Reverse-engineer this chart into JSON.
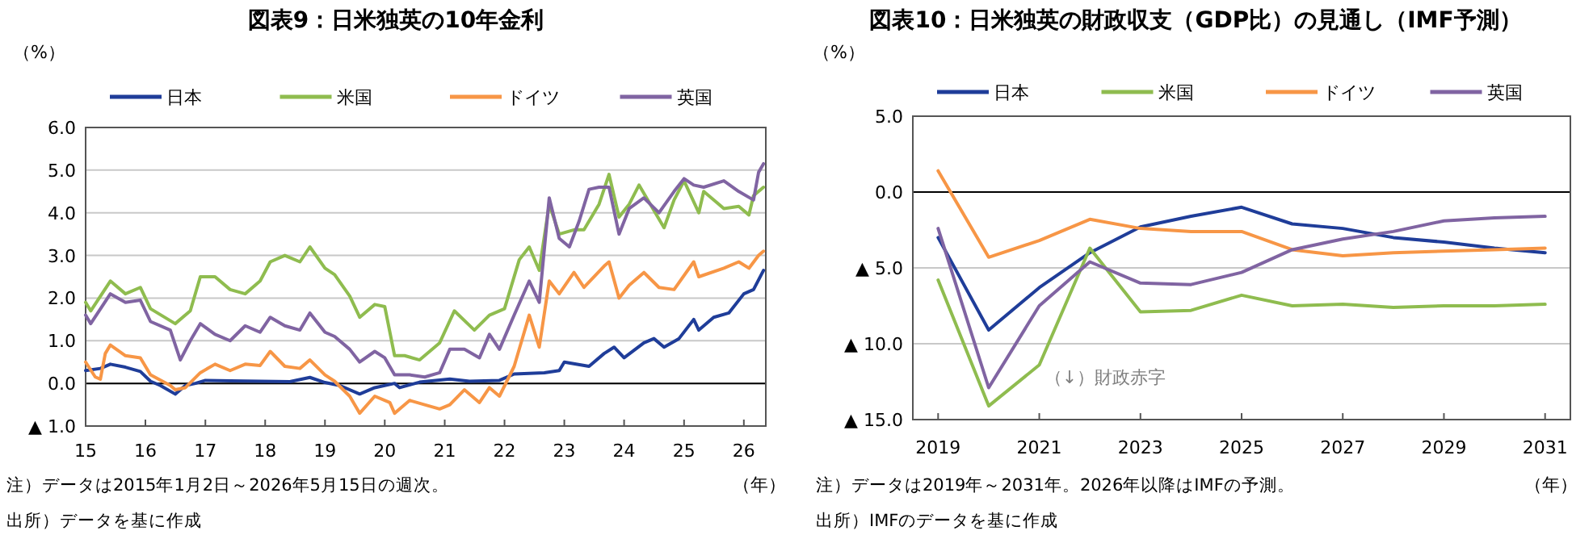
{
  "chart_data": [
    {
      "type": "line",
      "title": "図表9：日米独英の10年金利",
      "ylabel": "（%）",
      "xlabel": "（年）",
      "legend": "top",
      "grid": "y",
      "xlim": [
        "2015-01-01",
        "2026-05-15"
      ],
      "xticks": [
        {
          "value": "2015-01-01",
          "label": "15"
        },
        {
          "value": "2016-01-01",
          "label": "16"
        },
        {
          "value": "2017-01-01",
          "label": "17"
        },
        {
          "value": "2018-01-01",
          "label": "18"
        },
        {
          "value": "2019-01-01",
          "label": "19"
        },
        {
          "value": "2020-01-01",
          "label": "20"
        },
        {
          "value": "2021-01-01",
          "label": "21"
        },
        {
          "value": "2022-01-01",
          "label": "22"
        },
        {
          "value": "2023-01-01",
          "label": "23"
        },
        {
          "value": "2024-01-01",
          "label": "24"
        },
        {
          "value": "2025-01-01",
          "label": "25"
        },
        {
          "value": "2026-01-01",
          "label": "26"
        }
      ],
      "ylim": [
        -1,
        6
      ],
      "yticks": [
        {
          "value": -1,
          "label": "▲ 1.0"
        },
        {
          "value": 0,
          "label": "0.0"
        },
        {
          "value": 1,
          "label": "1.0"
        },
        {
          "value": 2,
          "label": "2.0"
        },
        {
          "value": 3,
          "label": "3.0"
        },
        {
          "value": 4,
          "label": "4.0"
        },
        {
          "value": 5,
          "label": "5.0"
        },
        {
          "value": 6,
          "label": "6.0"
        }
      ],
      "ref_lines": [
        {
          "axis": "y",
          "value": 0,
          "color": "#000000"
        }
      ],
      "annotations": [
        "注）データは2015年1月2日～2026年5月15日の週次。",
        "出所）データを基に作成"
      ],
      "series": [
        {
          "name": "日本",
          "color": "#1f3d99",
          "x": [
            "2015-01",
            "2015-04",
            "2015-06",
            "2015-09",
            "2015-12",
            "2016-02",
            "2016-04",
            "2016-07",
            "2016-09",
            "2016-11",
            "2017-01",
            "2017-06",
            "2017-12",
            "2018-06",
            "2018-10",
            "2019-01",
            "2019-04",
            "2019-08",
            "2019-11",
            "2020-03",
            "2020-04",
            "2020-08",
            "2021-02",
            "2021-06",
            "2021-12",
            "2022-03",
            "2022-09",
            "2022-12",
            "2023-01",
            "2023-06",
            "2023-09",
            "2023-11",
            "2024-01",
            "2024-05",
            "2024-07",
            "2024-09",
            "2024-12",
            "2025-03",
            "2025-04",
            "2025-07",
            "2025-10",
            "2026-01",
            "2026-03",
            "2026-05"
          ],
          "values": [
            0.3,
            0.35,
            0.45,
            0.38,
            0.28,
            0.05,
            -0.05,
            -0.25,
            -0.05,
            0.0,
            0.07,
            0.06,
            0.05,
            0.04,
            0.14,
            0.02,
            -0.05,
            -0.25,
            -0.1,
            0.0,
            -0.1,
            0.03,
            0.1,
            0.05,
            0.07,
            0.22,
            0.25,
            0.3,
            0.5,
            0.4,
            0.7,
            0.85,
            0.6,
            0.95,
            1.05,
            0.85,
            1.05,
            1.5,
            1.25,
            1.55,
            1.65,
            2.1,
            2.2,
            2.65
          ]
        },
        {
          "name": "米国",
          "color": "#8fbc4f",
          "x": [
            "2015-01",
            "2015-02",
            "2015-06",
            "2015-09",
            "2015-12",
            "2016-02",
            "2016-07",
            "2016-10",
            "2016-12",
            "2017-03",
            "2017-06",
            "2017-09",
            "2017-12",
            "2018-02",
            "2018-05",
            "2018-08",
            "2018-10",
            "2019-01",
            "2019-03",
            "2019-06",
            "2019-08",
            "2019-11",
            "2020-01",
            "2020-03",
            "2020-05",
            "2020-08",
            "2020-12",
            "2021-03",
            "2021-07",
            "2021-10",
            "2022-01",
            "2022-04",
            "2022-06",
            "2022-08",
            "2022-10",
            "2022-12",
            "2023-03",
            "2023-05",
            "2023-08",
            "2023-10",
            "2023-12",
            "2024-02",
            "2024-04",
            "2024-09",
            "2024-11",
            "2025-01",
            "2025-04",
            "2025-05",
            "2025-09",
            "2025-12",
            "2026-02",
            "2026-03",
            "2026-05"
          ],
          "values": [
            1.9,
            1.7,
            2.4,
            2.1,
            2.25,
            1.75,
            1.4,
            1.7,
            2.5,
            2.5,
            2.2,
            2.1,
            2.4,
            2.85,
            3.0,
            2.85,
            3.2,
            2.7,
            2.55,
            2.05,
            1.55,
            1.85,
            1.8,
            0.65,
            0.65,
            0.55,
            0.95,
            1.7,
            1.25,
            1.6,
            1.75,
            2.9,
            3.2,
            2.65,
            4.2,
            3.5,
            3.6,
            3.6,
            4.2,
            4.9,
            3.9,
            4.2,
            4.65,
            3.65,
            4.3,
            4.75,
            4.0,
            4.5,
            4.1,
            4.15,
            3.95,
            4.4,
            4.6
          ]
        },
        {
          "name": "ドイツ",
          "color": "#f79646",
          "x": [
            "2015-01",
            "2015-03",
            "2015-04",
            "2015-05",
            "2015-06",
            "2015-09",
            "2015-12",
            "2016-02",
            "2016-06",
            "2016-07",
            "2016-09",
            "2016-12",
            "2017-03",
            "2017-06",
            "2017-09",
            "2017-12",
            "2018-02",
            "2018-05",
            "2018-08",
            "2018-10",
            "2019-01",
            "2019-03",
            "2019-06",
            "2019-08",
            "2019-11",
            "2020-02",
            "2020-03",
            "2020-06",
            "2020-09",
            "2020-12",
            "2021-02",
            "2021-05",
            "2021-08",
            "2021-10",
            "2021-12",
            "2022-03",
            "2022-06",
            "2022-08",
            "2022-10",
            "2022-12",
            "2023-03",
            "2023-05",
            "2023-09",
            "2023-10",
            "2023-12",
            "2024-02",
            "2024-05",
            "2024-08",
            "2024-11",
            "2025-03",
            "2025-04",
            "2025-09",
            "2025-12",
            "2026-02",
            "2026-04",
            "2026-05"
          ],
          "values": [
            0.5,
            0.15,
            0.1,
            0.7,
            0.9,
            0.65,
            0.6,
            0.2,
            -0.05,
            -0.15,
            -0.1,
            0.25,
            0.45,
            0.3,
            0.45,
            0.42,
            0.75,
            0.4,
            0.35,
            0.55,
            0.2,
            0.05,
            -0.3,
            -0.7,
            -0.3,
            -0.45,
            -0.7,
            -0.4,
            -0.5,
            -0.6,
            -0.5,
            -0.15,
            -0.45,
            -0.1,
            -0.3,
            0.4,
            1.6,
            0.85,
            2.4,
            2.1,
            2.6,
            2.25,
            2.75,
            2.85,
            2.0,
            2.3,
            2.6,
            2.25,
            2.2,
            2.85,
            2.5,
            2.7,
            2.85,
            2.7,
            3.0,
            3.1
          ]
        },
        {
          "name": "英国",
          "color": "#8064a2",
          "x": [
            "2015-01",
            "2015-02",
            "2015-06",
            "2015-09",
            "2015-12",
            "2016-02",
            "2016-06",
            "2016-08",
            "2016-10",
            "2016-12",
            "2017-03",
            "2017-06",
            "2017-09",
            "2017-12",
            "2018-02",
            "2018-05",
            "2018-08",
            "2018-10",
            "2019-01",
            "2019-03",
            "2019-06",
            "2019-08",
            "2019-11",
            "2020-01",
            "2020-03",
            "2020-06",
            "2020-09",
            "2020-12",
            "2021-02",
            "2021-05",
            "2021-08",
            "2021-10",
            "2021-12",
            "2022-03",
            "2022-06",
            "2022-08",
            "2022-10",
            "2022-12",
            "2023-02",
            "2023-04",
            "2023-06",
            "2023-08",
            "2023-10",
            "2023-12",
            "2024-02",
            "2024-05",
            "2024-08",
            "2024-11",
            "2025-01",
            "2025-03",
            "2025-05",
            "2025-09",
            "2025-12",
            "2026-03",
            "2026-04",
            "2026-05"
          ],
          "values": [
            1.6,
            1.4,
            2.1,
            1.9,
            1.95,
            1.45,
            1.25,
            0.55,
            1.0,
            1.4,
            1.15,
            1.0,
            1.35,
            1.2,
            1.55,
            1.35,
            1.25,
            1.65,
            1.2,
            1.1,
            0.8,
            0.5,
            0.75,
            0.6,
            0.2,
            0.2,
            0.15,
            0.25,
            0.8,
            0.8,
            0.6,
            1.15,
            0.8,
            1.6,
            2.4,
            1.9,
            4.35,
            3.4,
            3.2,
            3.8,
            4.55,
            4.6,
            4.6,
            3.5,
            4.1,
            4.35,
            4.0,
            4.5,
            4.8,
            4.65,
            4.6,
            4.75,
            4.5,
            4.3,
            4.95,
            5.15
          ]
        }
      ]
    },
    {
      "type": "line",
      "title": "図表10：日米独英の財政収支（GDP比）の見通し（IMF予測）",
      "ylabel": "（%）",
      "xlabel": "（年）",
      "legend": "top",
      "grid": "y",
      "xlim": [
        2018.5,
        2031.5
      ],
      "xticks": [
        2019,
        2021,
        2023,
        2025,
        2027,
        2029,
        2031
      ],
      "ylim": [
        -15,
        5
      ],
      "yticks": [
        {
          "value": -15,
          "label": "▲ 15.0"
        },
        {
          "value": -10,
          "label": "▲ 10.0"
        },
        {
          "value": -5,
          "label": "▲ 5.0"
        },
        {
          "value": 0,
          "label": "0.0"
        },
        {
          "value": 5,
          "label": "5.0"
        }
      ],
      "ref_lines": [
        {
          "axis": "y",
          "value": 0,
          "color": "#000000"
        }
      ],
      "annotations": [
        "（↓）財政赤字",
        "注）データは2019年～2031年。2026年以降はIMFの予測。",
        "出所）IMFのデータを基に作成"
      ],
      "x": [
        2019,
        2020,
        2021,
        2022,
        2023,
        2024,
        2025,
        2026,
        2027,
        2028,
        2029,
        2030,
        2031
      ],
      "series": [
        {
          "name": "日本",
          "color": "#1f3d99",
          "values": [
            -3.0,
            -9.1,
            -6.3,
            -4.0,
            -2.3,
            -1.6,
            -1.0,
            -2.1,
            -2.4,
            -3.0,
            -3.3,
            -3.7,
            -4.0
          ]
        },
        {
          "name": "米国",
          "color": "#8fbc4f",
          "values": [
            -5.8,
            -14.1,
            -11.4,
            -3.7,
            -7.9,
            -7.8,
            -6.8,
            -7.5,
            -7.4,
            -7.6,
            -7.5,
            -7.5,
            -7.4
          ]
        },
        {
          "name": "ドイツ",
          "color": "#f79646",
          "values": [
            1.4,
            -4.3,
            -3.2,
            -1.8,
            -2.4,
            -2.6,
            -2.6,
            -3.8,
            -4.2,
            -4.0,
            -3.9,
            -3.8,
            -3.7
          ]
        },
        {
          "name": "英国",
          "color": "#8064a2",
          "values": [
            -2.4,
            -12.9,
            -7.5,
            -4.6,
            -6.0,
            -6.1,
            -5.3,
            -3.8,
            -3.1,
            -2.6,
            -1.9,
            -1.7,
            -1.6
          ]
        }
      ]
    }
  ]
}
